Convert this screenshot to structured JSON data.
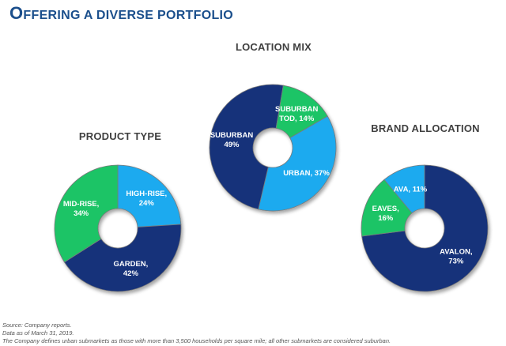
{
  "header": {
    "title_cap": "O",
    "title_rest": "FFERING A DIVERSE PORTFOLIO"
  },
  "chart_data": [
    {
      "type": "pie",
      "title": "LOCATION MIX",
      "slices": [
        {
          "line1": "URBAN, 37%",
          "line2": "",
          "value": 37,
          "color": "#1eaaef"
        },
        {
          "line1": "SUBURBAN",
          "line2": "49%",
          "value": 49,
          "color": "#15307a"
        },
        {
          "line1": "SUBURBAN",
          "line2": "TOD, 14%",
          "value": 14,
          "color": "#1ec466"
        }
      ]
    },
    {
      "type": "pie",
      "title": "PRODUCT TYPE",
      "slices": [
        {
          "line1": "HIGH-RISE,",
          "line2": "24%",
          "value": 24,
          "color": "#1eaaef"
        },
        {
          "line1": "GARDEN,",
          "line2": "42%",
          "value": 42,
          "color": "#15307a"
        },
        {
          "line1": "MID-RISE,",
          "line2": "34%",
          "value": 34,
          "color": "#1ec466"
        }
      ]
    },
    {
      "type": "pie",
      "title": "BRAND ALLOCATION",
      "slices": [
        {
          "line1": "AVALON,",
          "line2": "73%",
          "value": 73,
          "color": "#15307a"
        },
        {
          "line1": "EAVES,",
          "line2": "16%",
          "value": 16,
          "color": "#1ec466"
        },
        {
          "line1": "AVA, 11%",
          "line2": "",
          "value": 11,
          "color": "#1eaaef"
        }
      ]
    }
  ],
  "footnotes": {
    "source": "Source:  Company reports.",
    "date": "Data as of March 31, 2019.",
    "definition": "The Company defines urban submarkets as those with more than 3,500 households per square mile; all other submarkets are considered suburban."
  }
}
